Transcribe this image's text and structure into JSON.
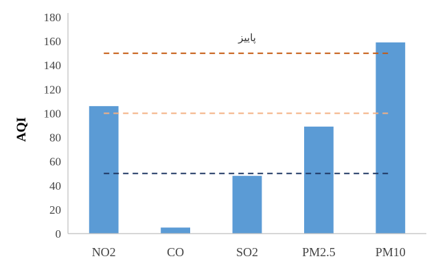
{
  "chart_data": {
    "type": "bar",
    "title": "",
    "xlabel": "",
    "ylabel": "AQI",
    "ylim": [
      0,
      180
    ],
    "yticks": [
      0,
      20,
      40,
      60,
      80,
      100,
      120,
      140,
      160,
      180
    ],
    "grid": false,
    "categories": [
      "NO2",
      "CO",
      "SO2",
      "PM2.5",
      "PM10"
    ],
    "values": [
      106,
      5,
      48,
      89,
      159
    ],
    "bar_color": "#5b9bd5",
    "reference_lines": [
      {
        "value": 150,
        "color": "#c55a11"
      },
      {
        "value": 100,
        "color": "#f4b183"
      },
      {
        "value": 50,
        "color": "#203864"
      }
    ],
    "annotations": [
      {
        "text": "پاییز",
        "x_category": "SO2",
        "y": 163
      }
    ]
  }
}
